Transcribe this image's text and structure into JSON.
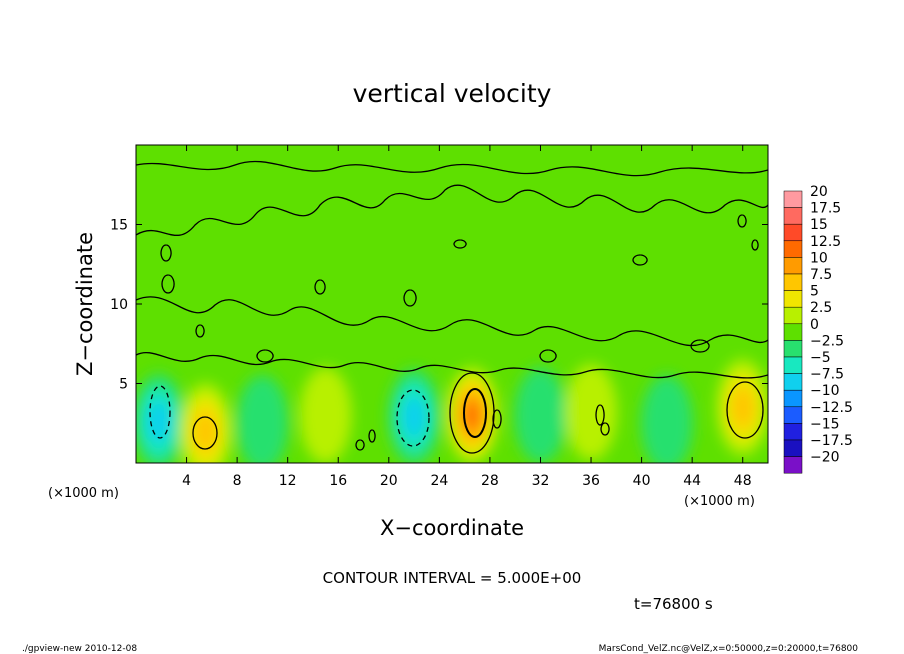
{
  "chart_data": {
    "type": "heatmap",
    "title": "vertical velocity",
    "xlabel": "X−coordinate",
    "ylabel": "Z−coordinate",
    "x_unit_left": "(×1000 m)",
    "x_unit_right": "(×1000 m)",
    "xlim": [
      0,
      50
    ],
    "ylim": [
      0,
      20
    ],
    "x_ticks": [
      4,
      8,
      12,
      16,
      20,
      24,
      28,
      32,
      36,
      40,
      44,
      48
    ],
    "x_tick_labels": [
      "4",
      "8",
      "12",
      "16",
      "20",
      "24",
      "28",
      "32",
      "36",
      "40",
      "44",
      "48"
    ],
    "y_ticks": [
      5,
      10,
      15
    ],
    "y_tick_labels": [
      "5",
      "10",
      "15"
    ],
    "colorbar": {
      "levels": [
        20,
        17.5,
        15,
        12.5,
        10,
        7.5,
        5,
        2.5,
        0,
        -2.5,
        -5,
        -7.5,
        -10,
        -12.5,
        -15,
        -17.5,
        -20
      ],
      "labels": [
        "20",
        "17.5",
        "15",
        "12.5",
        "10",
        "7.5",
        "5",
        "2.5",
        "0",
        "−2.5",
        "−5",
        "−7.5",
        "−10",
        "−12.5",
        "−15",
        "−17.5",
        "−20"
      ],
      "colors": [
        "#ff9aa0",
        "#ff6a60",
        "#ff4a28",
        "#ff6a00",
        "#ff9b00",
        "#ffc600",
        "#f0e600",
        "#b8f000",
        "#5ee000",
        "#28e06e",
        "#18e8c0",
        "#10d0ee",
        "#0a96ff",
        "#1b5cff",
        "#2020e0",
        "#1a10c0",
        "#7a10c8"
      ]
    },
    "features": [
      {
        "x": 1.8,
        "z": 2.6,
        "w": -7.5,
        "sign": "down"
      },
      {
        "x": 5.5,
        "z": 2.0,
        "w": 7.5,
        "sign": "up"
      },
      {
        "x": 10.0,
        "z": 2.5,
        "w": -2.5,
        "sign": "down"
      },
      {
        "x": 15.0,
        "z": 3.0,
        "w": 3.0,
        "sign": "up"
      },
      {
        "x": 22.0,
        "z": 2.9,
        "w": -7.5,
        "sign": "down"
      },
      {
        "x": 26.6,
        "z": 3.0,
        "w": 12.5,
        "sign": "up"
      },
      {
        "x": 32.0,
        "z": 3.0,
        "w": -2.5,
        "sign": "down"
      },
      {
        "x": 36.0,
        "z": 3.2,
        "w": 3.0,
        "sign": "up"
      },
      {
        "x": 42.0,
        "z": 2.5,
        "w": -2.0,
        "sign": "down"
      },
      {
        "x": 48.0,
        "z": 3.5,
        "w": 6.5,
        "sign": "up"
      }
    ],
    "contour_interval_text": "CONTOUR INTERVAL = 5.000E+00",
    "time_text": "t=76800 s",
    "footer_left": "./gpview-new   2010-12-08",
    "footer_right": "MarsCond_VelZ.nc@VelZ,x=0:50000,z=0:20000,t=76800"
  }
}
